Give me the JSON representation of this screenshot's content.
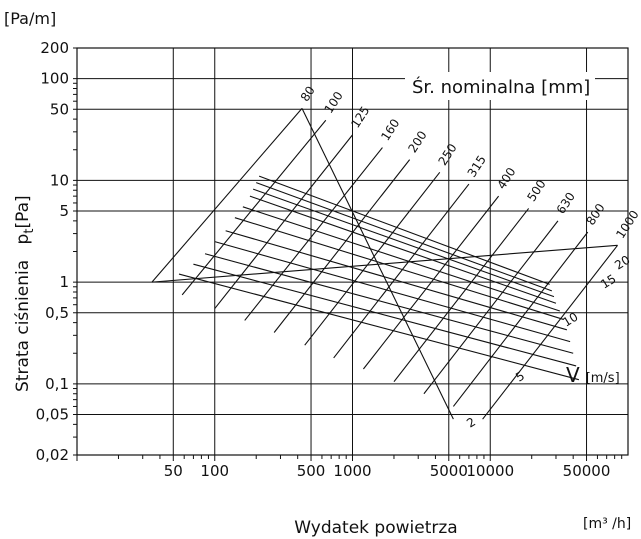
{
  "chart_data": {
    "type": "line",
    "title": "",
    "xlabel": "Wydatek powietrza",
    "xunit": "[m³ /h]",
    "ylabel_text": "Strata ciśnienia",
    "ylabel_symbol": "p",
    "ylabel_subscript": "t",
    "ylabel_unit": "[Pa]",
    "yunit": "[Pa/m]",
    "x_scale": "log",
    "y_scale": "log",
    "xlim": [
      10,
      100000
    ],
    "ylim": [
      0.02,
      200
    ],
    "x_ticks": [
      {
        "value": 50,
        "label": "50"
      },
      {
        "value": 100,
        "label": "100"
      },
      {
        "value": 500,
        "label": "500"
      },
      {
        "value": 1000,
        "label": "1000"
      },
      {
        "value": 5000,
        "label": "5000"
      },
      {
        "value": 10000,
        "label": "10000"
      },
      {
        "value": 50000,
        "label": "50000"
      }
    ],
    "y_ticks": [
      {
        "value": 0.02,
        "label": "0,02"
      },
      {
        "value": 0.05,
        "label": "0,05"
      },
      {
        "value": 0.1,
        "label": "0,1"
      },
      {
        "value": 0.5,
        "label": "0,5"
      },
      {
        "value": 1,
        "label": "1"
      },
      {
        "value": 5,
        "label": "5"
      },
      {
        "value": 10,
        "label": "10"
      },
      {
        "value": 50,
        "label": "50"
      },
      {
        "value": 100,
        "label": "100"
      },
      {
        "value": 200,
        "label": "200"
      }
    ],
    "x_gridlines": [
      50,
      100,
      500,
      1000,
      5000,
      10000,
      50000
    ],
    "y_gridlines": [
      0.05,
      0.1,
      0.5,
      1,
      5,
      10,
      50,
      100,
      200
    ],
    "diameter_title": "Śr. nominalna [mm]",
    "diameters": [
      80,
      100,
      125,
      160,
      200,
      250,
      315,
      400,
      500,
      630,
      800,
      1000
    ],
    "velocity_title": "V",
    "velocity_unit": "[m/s]",
    "velocity_labels": [
      {
        "value": 2,
        "label": "2"
      },
      {
        "value": 5,
        "label": "5"
      },
      {
        "value": 10,
        "label": "10"
      },
      {
        "value": 15,
        "label": "15"
      },
      {
        "value": 20,
        "label": "20"
      }
    ],
    "num_velocity_lines": 13,
    "diameter_lines": [
      {
        "mm": 80,
        "from": [
          35,
          1.0
        ],
        "to": [
          430,
          51
        ]
      },
      {
        "mm": 100,
        "from": [
          58,
          0.75
        ],
        "to": [
          640,
          39
        ]
      },
      {
        "mm": 125,
        "from": [
          100,
          0.55
        ],
        "to": [
          1000,
          28
        ]
      },
      {
        "mm": 160,
        "from": [
          165,
          0.42
        ],
        "to": [
          1650,
          21
        ]
      },
      {
        "mm": 200,
        "from": [
          270,
          0.32
        ],
        "to": [
          2600,
          16
        ]
      },
      {
        "mm": 250,
        "from": [
          450,
          0.24
        ],
        "to": [
          4300,
          12
        ]
      },
      {
        "mm": 315,
        "from": [
          730,
          0.18
        ],
        "to": [
          7000,
          9.2
        ]
      },
      {
        "mm": 400,
        "from": [
          1200,
          0.14
        ],
        "to": [
          11500,
          7
        ]
      },
      {
        "mm": 500,
        "from": [
          2000,
          0.105
        ],
        "to": [
          19000,
          5.3
        ]
      },
      {
        "mm": 630,
        "from": [
          3300,
          0.08
        ],
        "to": [
          31000,
          4
        ]
      },
      {
        "mm": 800,
        "from": [
          5400,
          0.06
        ],
        "to": [
          51000,
          3.1
        ]
      },
      {
        "mm": 1000,
        "from": [
          8800,
          0.045
        ],
        "to": [
          84000,
          2.3
        ]
      }
    ],
    "velocity_lines": [
      {
        "from": [
          430,
          51
        ],
        "to": [
          5400,
          0.045
        ]
      },
      {
        "from": [
          210,
          11
        ],
        "to": [
          27000,
          0.95
        ]
      },
      {
        "from": [
          200,
          9.5
        ],
        "to": [
          28000,
          0.82
        ]
      },
      {
        "from": [
          190,
          8.2
        ],
        "to": [
          29000,
          0.72
        ]
      },
      {
        "from": [
          180,
          7.0
        ],
        "to": [
          30000,
          0.62
        ]
      },
      {
        "from": [
          160,
          5.5
        ],
        "to": [
          32000,
          0.52
        ]
      },
      {
        "from": [
          140,
          4.3
        ],
        "to": [
          34000,
          0.43
        ]
      },
      {
        "from": [
          120,
          3.2
        ],
        "to": [
          36000,
          0.34
        ]
      },
      {
        "from": [
          100,
          2.5
        ],
        "to": [
          38000,
          0.26
        ]
      },
      {
        "from": [
          85,
          1.9
        ],
        "to": [
          40000,
          0.2
        ]
      },
      {
        "from": [
          70,
          1.5
        ],
        "to": [
          42000,
          0.15
        ]
      },
      {
        "from": [
          55,
          1.2
        ],
        "to": [
          44000,
          0.11
        ]
      },
      {
        "from": [
          35,
          1.0
        ],
        "to": [
          84000,
          2.3
        ]
      }
    ]
  }
}
